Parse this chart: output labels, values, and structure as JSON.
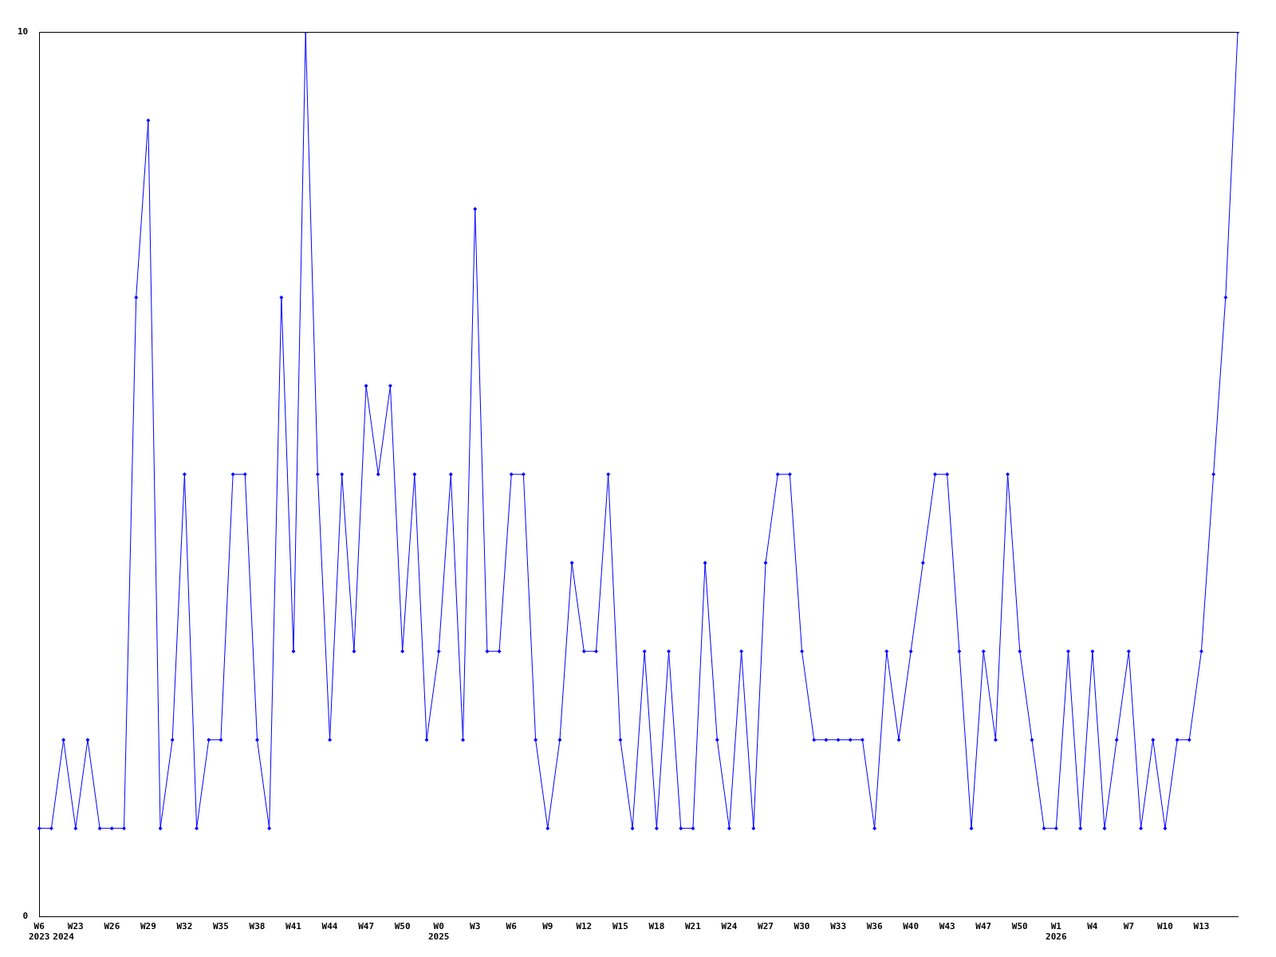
{
  "chart_data": {
    "type": "line",
    "categories": [
      "W6\n2023",
      null,
      "\n2024",
      "W23",
      null,
      null,
      "W26",
      null,
      null,
      "W29",
      null,
      null,
      "W32",
      null,
      null,
      "W35",
      null,
      null,
      "W38",
      null,
      null,
      "W41",
      null,
      null,
      "W44",
      null,
      null,
      "W47",
      null,
      null,
      "W50",
      null,
      null,
      "W0\n2025",
      null,
      null,
      "W3",
      null,
      null,
      "W6",
      null,
      null,
      "W9",
      null,
      null,
      "W12",
      null,
      null,
      "W15",
      null,
      null,
      "W18",
      null,
      null,
      "W21",
      null,
      null,
      "W24",
      null,
      null,
      "W27",
      null,
      null,
      "W30",
      null,
      null,
      "W33",
      null,
      null,
      "W36",
      null,
      null,
      "W40",
      null,
      null,
      "W43",
      null,
      null,
      "W47",
      null,
      null,
      "W50",
      null,
      null,
      "W1\n2026",
      null,
      null,
      "W4",
      null,
      null,
      "W7",
      null,
      null,
      "W10",
      null,
      null,
      "W13",
      null,
      null,
      null
    ],
    "series": [
      {
        "color": "#0000ff",
        "values": [
          1,
          1,
          2,
          1,
          2,
          1,
          1,
          1,
          7,
          9,
          1,
          2,
          5,
          1,
          2,
          2,
          5,
          5,
          2,
          1,
          7,
          3,
          10,
          5,
          2,
          5,
          3,
          6,
          5,
          6,
          3,
          5,
          2,
          3,
          5,
          2,
          8,
          3,
          3,
          5,
          5,
          2,
          1,
          2,
          4,
          3,
          3,
          5,
          2,
          1,
          3,
          1,
          3,
          1,
          1,
          4,
          2,
          1,
          3,
          1,
          4,
          5,
          5,
          3,
          2,
          2,
          2,
          2,
          2,
          1,
          3,
          2,
          3,
          4,
          5,
          5,
          3,
          1,
          3,
          2,
          5,
          3,
          2,
          1,
          1,
          3,
          1,
          3,
          1,
          2,
          3,
          1,
          2,
          1,
          2,
          2,
          3,
          5,
          7,
          10
        ]
      }
    ],
    "ylim": [
      0,
      10
    ],
    "yticks": [
      0,
      10
    ],
    "grid": false,
    "legend": false,
    "marker": "diamond",
    "line_style": "solid"
  }
}
